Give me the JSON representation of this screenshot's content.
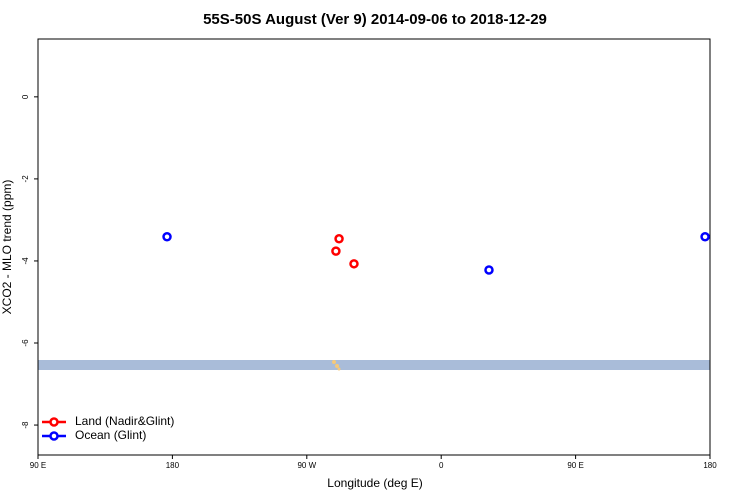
{
  "chart_data": {
    "type": "scatter",
    "title": "55S-50S August (Ver 9)   2014-09-06 to 2018-12-29",
    "x_label": "Longitude (deg E)",
    "y_label": "XCO2 - MLO trend (ppm)",
    "xlim": [
      90,
      540
    ],
    "ylim": [
      -8.73,
      1.41
    ],
    "xticks": [
      {
        "value": 90,
        "label": "90 E"
      },
      {
        "value": 180,
        "label": "180"
      },
      {
        "value": 270,
        "label": "90 W"
      },
      {
        "value": 360,
        "label": "0"
      },
      {
        "value": 450,
        "label": "90 E"
      },
      {
        "value": 540,
        "label": "180"
      }
    ],
    "yticks": [
      0,
      -2,
      -4,
      -6,
      -8
    ],
    "legend": "bottom-left",
    "series": [
      {
        "name": "Land (Nadir&Glint)",
        "color": "#ff0000",
        "x": [
          291.6,
          289.5,
          301.6
        ],
        "y": [
          -3.46,
          -3.76,
          -4.07
        ]
      },
      {
        "name": "Ocean (Glint)",
        "color": "#0000ff",
        "x": [
          176.4,
          392.0,
          536.7
        ],
        "y": [
          -3.41,
          -4.22,
          -3.41
        ]
      }
    ]
  }
}
